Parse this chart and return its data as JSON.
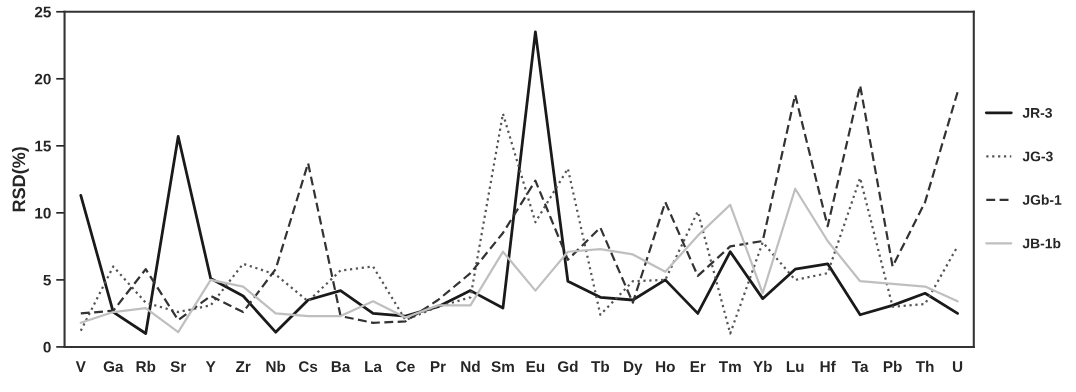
{
  "chart_data": {
    "type": "line",
    "ylabel": "RSD(%)",
    "categories": [
      "V",
      "Ga",
      "Rb",
      "Sr",
      "Y",
      "Zr",
      "Nb",
      "Cs",
      "Ba",
      "La",
      "Ce",
      "Pr",
      "Nd",
      "Sm",
      "Eu",
      "Gd",
      "Tb",
      "Dy",
      "Ho",
      "Er",
      "Tm",
      "Yb",
      "Lu",
      "Hf",
      "Ta",
      "Pb",
      "Th",
      "U"
    ],
    "series": [
      {
        "name": "JR-3",
        "color": "#1a1a1a",
        "line_style": "solid",
        "values": [
          11.3,
          2.6,
          1.0,
          15.7,
          5.1,
          3.8,
          1.1,
          3.5,
          4.2,
          2.5,
          2.3,
          3.0,
          4.2,
          2.9,
          23.5,
          4.9,
          3.7,
          3.5,
          5.0,
          2.5,
          7.1,
          3.6,
          5.8,
          6.2,
          2.4,
          3.1,
          4.0,
          2.5
        ]
      },
      {
        "name": "JG-3",
        "color": "#555555",
        "line_style": "dotted",
        "values": [
          1.2,
          6.0,
          3.3,
          2.6,
          3.1,
          6.2,
          5.4,
          3.4,
          5.7,
          6.0,
          2.0,
          3.0,
          3.7,
          17.4,
          9.3,
          13.3,
          2.4,
          4.9,
          5.0,
          10.1,
          1.0,
          7.8,
          5.0,
          5.5,
          12.6,
          3.0,
          3.2,
          7.5
        ]
      },
      {
        "name": "JGb-1",
        "color": "#333333",
        "line_style": "dashed",
        "values": [
          2.5,
          2.7,
          5.8,
          2.0,
          3.8,
          2.6,
          5.8,
          13.7,
          2.3,
          1.8,
          1.9,
          3.5,
          5.5,
          8.5,
          12.4,
          6.5,
          8.9,
          3.3,
          10.8,
          5.3,
          7.5,
          7.9,
          18.8,
          9.0,
          19.5,
          6.0,
          10.8,
          19.0
        ]
      },
      {
        "name": "JB-1b",
        "color": "#bfbfbf",
        "line_style": "solid",
        "values": [
          1.8,
          2.6,
          2.9,
          1.1,
          5.0,
          4.5,
          2.5,
          2.3,
          2.3,
          3.4,
          2.2,
          3.1,
          3.1,
          7.1,
          4.2,
          7.1,
          7.3,
          6.9,
          5.6,
          8.3,
          10.6,
          4.0,
          11.8,
          7.9,
          4.9,
          4.7,
          4.5,
          3.4
        ]
      }
    ],
    "ylim": [
      0,
      25
    ],
    "yticks": [
      0,
      5,
      10,
      15,
      20,
      25
    ],
    "grid": false,
    "legend": "right",
    "marker": "none"
  }
}
